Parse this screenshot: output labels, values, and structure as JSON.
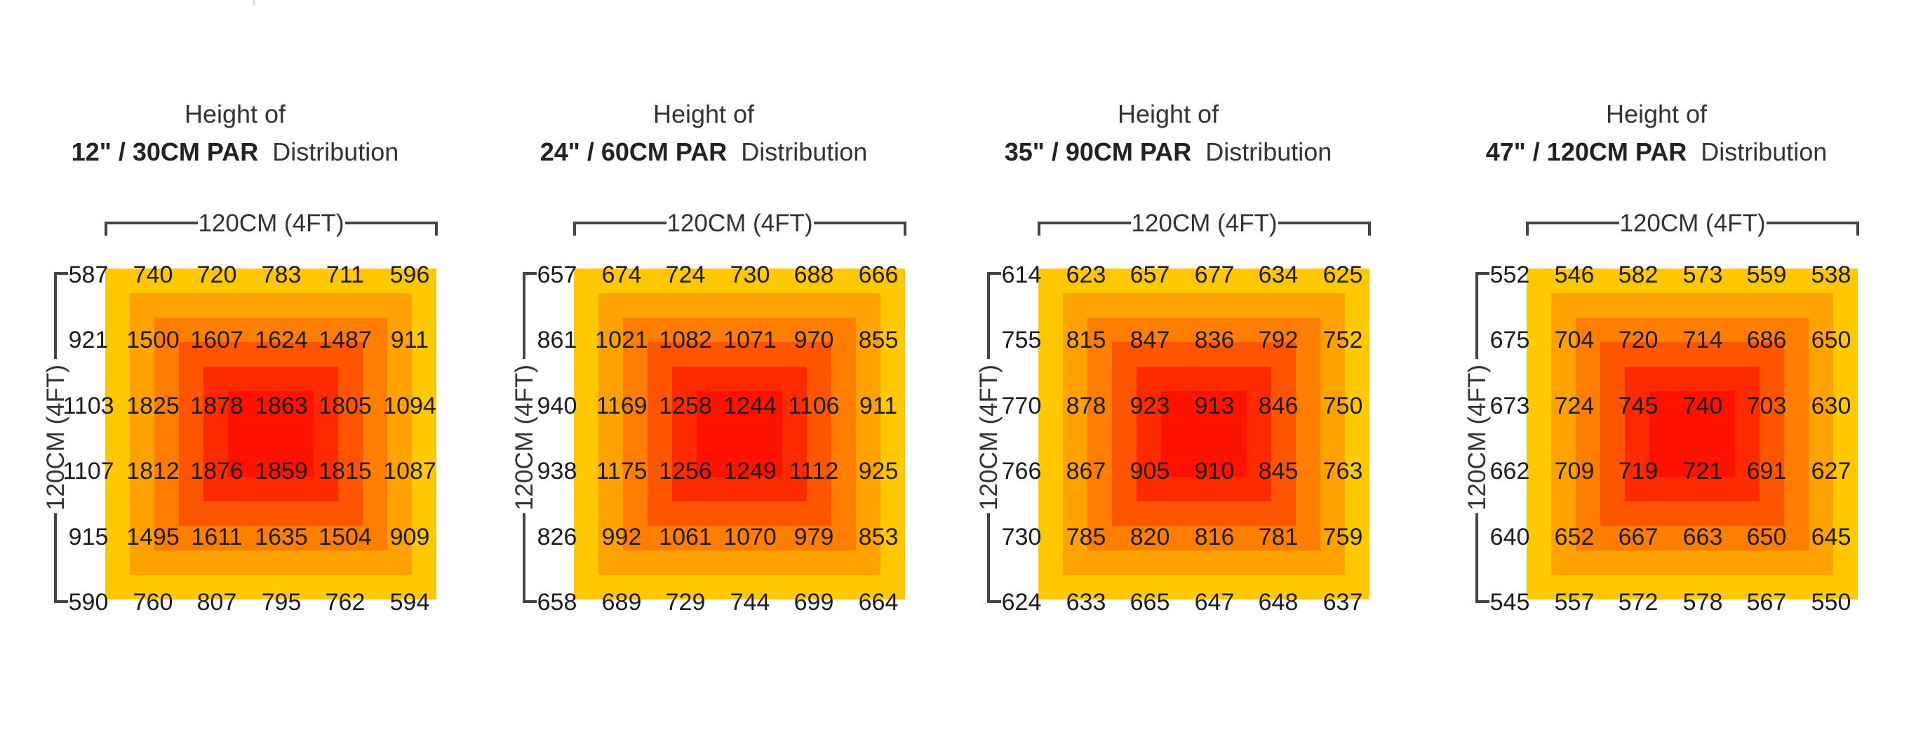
{
  "chart_data": [
    {
      "type": "heatmap",
      "title_line1": "Height of",
      "title_bold": "12\" / 30CM PAR",
      "title_rest": "Distribution",
      "xlabel": "120CM (4FT)",
      "ylabel": "120CM (4FT)",
      "values": [
        [
          587,
          740,
          720,
          783,
          711,
          596
        ],
        [
          921,
          1500,
          1607,
          1624,
          1487,
          911
        ],
        [
          1103,
          1825,
          1878,
          1863,
          1805,
          1094
        ],
        [
          1107,
          1812,
          1876,
          1859,
          1815,
          1087
        ],
        [
          915,
          1495,
          1611,
          1635,
          1504,
          909
        ],
        [
          590,
          760,
          807,
          795,
          762,
          594
        ]
      ]
    },
    {
      "type": "heatmap",
      "title_line1": "Height of",
      "title_bold": "24\" / 60CM PAR",
      "title_rest": "Distribution",
      "xlabel": "120CM (4FT)",
      "ylabel": "120CM (4FT)",
      "values": [
        [
          657,
          674,
          724,
          730,
          688,
          666
        ],
        [
          861,
          1021,
          1082,
          1071,
          970,
          855
        ],
        [
          940,
          1169,
          1258,
          1244,
          1106,
          911
        ],
        [
          938,
          1175,
          1256,
          1249,
          1112,
          925
        ],
        [
          826,
          992,
          1061,
          1070,
          979,
          853
        ],
        [
          658,
          689,
          729,
          744,
          699,
          664
        ]
      ]
    },
    {
      "type": "heatmap",
      "title_line1": "Height of",
      "title_bold": "35\" / 90CM PAR",
      "title_rest": "Distribution",
      "xlabel": "120CM (4FT)",
      "ylabel": "120CM (4FT)",
      "values": [
        [
          614,
          623,
          657,
          677,
          634,
          625
        ],
        [
          755,
          815,
          847,
          836,
          792,
          752
        ],
        [
          770,
          878,
          923,
          913,
          846,
          750
        ],
        [
          766,
          867,
          905,
          910,
          845,
          763
        ],
        [
          730,
          785,
          820,
          816,
          781,
          759
        ],
        [
          624,
          633,
          665,
          647,
          648,
          637
        ]
      ]
    },
    {
      "type": "heatmap",
      "title_line1": "Height of",
      "title_bold": "47\" / 120CM PAR",
      "title_rest": "Distribution",
      "xlabel": "120CM (4FT)",
      "ylabel": "120CM (4FT)",
      "values": [
        [
          552,
          546,
          582,
          573,
          559,
          538
        ],
        [
          675,
          704,
          720,
          714,
          686,
          650
        ],
        [
          673,
          724,
          745,
          740,
          703,
          630
        ],
        [
          662,
          709,
          719,
          721,
          691,
          627
        ],
        [
          640,
          652,
          667,
          663,
          650,
          645
        ],
        [
          545,
          557,
          572,
          578,
          567,
          550
        ]
      ]
    }
  ],
  "colors": {
    "ring_outer": "#ffc800",
    "ring_2": "#ffa200",
    "ring_3": "#ff7e00",
    "ring_4": "#ff5500",
    "ring_5": "#ff2a00",
    "ring_center": "#ff1200",
    "dimension_line": "#444444"
  }
}
